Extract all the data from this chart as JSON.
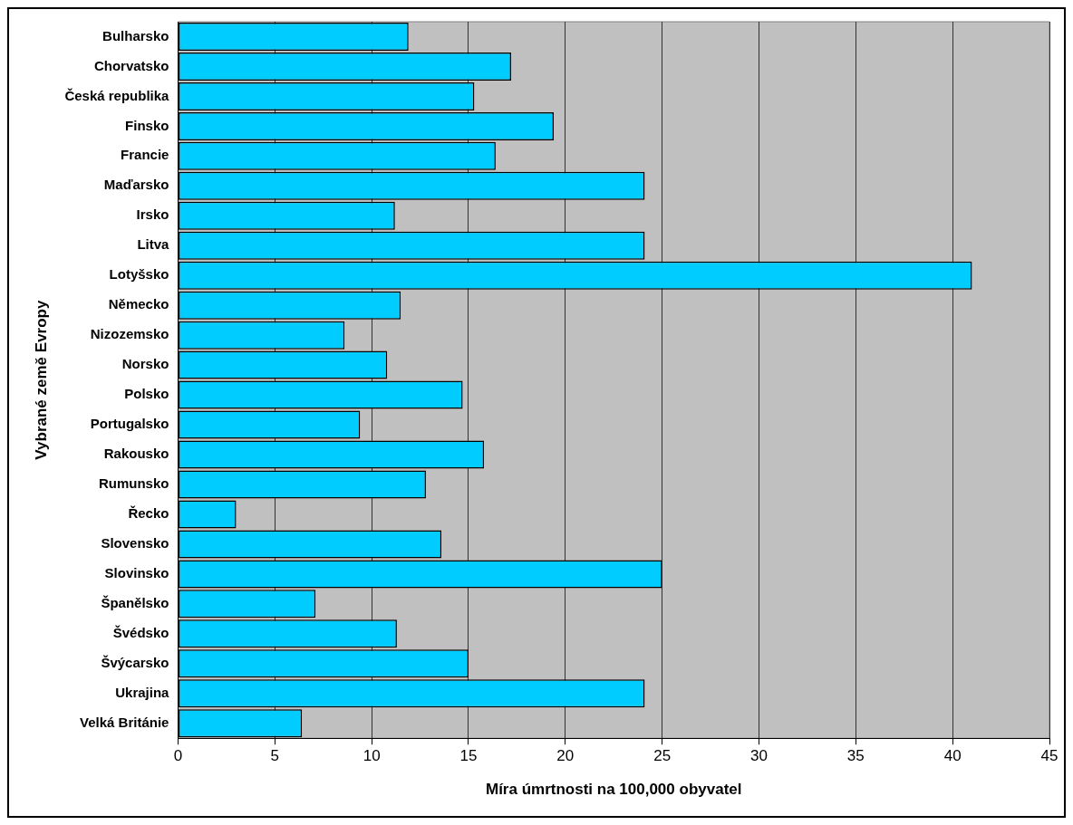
{
  "chart_data": {
    "type": "bar",
    "orientation": "horizontal",
    "xlabel": "Míra úmrtnosti na 100,000 obyvatel",
    "ylabel": "Vybrané země Evropy",
    "categories": [
      "Bulharsko",
      "Chorvatsko",
      "Česká republika",
      "Finsko",
      "Francie",
      "Maďarsko",
      "Irsko",
      "Litva",
      "Lotyšsko",
      "Německo",
      "Nizozemsko",
      "Norsko",
      "Polsko",
      "Portugalsko",
      "Rakousko",
      "Rumunsko",
      "Řecko",
      "Slovensko",
      "Slovinsko",
      "Španělsko",
      "Švédsko",
      "Švýcarsko",
      "Ukrajina",
      "Velká Británie"
    ],
    "values": [
      11.9,
      17.2,
      15.3,
      19.4,
      16.4,
      24.1,
      11.2,
      24.1,
      41.0,
      11.5,
      8.6,
      10.8,
      14.7,
      9.4,
      15.8,
      12.8,
      3.0,
      13.6,
      25.0,
      7.1,
      11.3,
      15.0,
      24.1,
      6.4
    ],
    "color": "#00ccff",
    "xlim": [
      0,
      45
    ],
    "xticks": [
      0,
      5,
      10,
      15,
      20,
      25,
      30,
      35,
      40,
      45
    ],
    "grid": "x"
  }
}
